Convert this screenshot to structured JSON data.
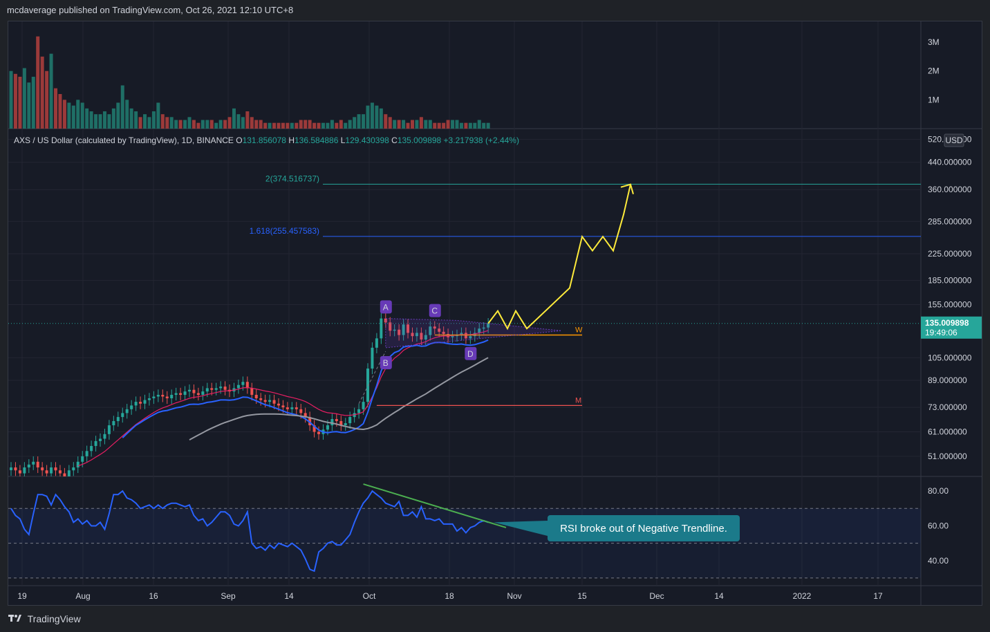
{
  "header": {
    "published": "mcdaverage published on TradingView.com, Oct 26, 2021 12:10 UTC+8"
  },
  "footer": {
    "brand": "TradingView"
  },
  "legend": {
    "symbol": "AXS / US Dollar (calculated by TradingView), 1D, BINANCE",
    "o_label": "O",
    "o_value": "131.856078",
    "h_label": "H",
    "h_value": "136.584886",
    "l_label": "L",
    "l_value": "129.430398",
    "c_label": "C",
    "c_value": "135.009898",
    "change": "+3.217938 (+2.44%)"
  },
  "price_tag": {
    "price": "135.009898",
    "countdown": "19:49:06"
  },
  "currency": "USD",
  "colors": {
    "up": "#26a69a",
    "down": "#ef5350",
    "ema_fast": "#2962ff",
    "ema_slow": "#e91e63",
    "sma": "#9598a1",
    "projection": "#ffeb3b",
    "rsi": "#2962ff",
    "trendline": "#4caf50",
    "fib_2": "#26a69a",
    "fib_1618": "#2962ff",
    "label_purple": "#673ab7"
  },
  "fib_levels": [
    {
      "label": "2(374.516737)",
      "price": 374.516737
    },
    {
      "label": "1.618(255.457583)",
      "price": 255.457583
    }
  ],
  "pattern_points": [
    "A",
    "B",
    "C",
    "D"
  ],
  "level_labels": {
    "w": "W",
    "m": "M"
  },
  "annotation": {
    "text": "RSI broke out of Negative Trendline."
  },
  "chart_data": {
    "type": "candlestick",
    "symbol": "AXSUSD",
    "timeframe": "1D",
    "price_axis": {
      "scale": "log",
      "ticks": [
        "520.000000",
        "440.000000",
        "360.000000",
        "285.000000",
        "225.000000",
        "185.000000",
        "155.000000",
        "105.000000",
        "89.000000",
        "73.000000",
        "61.000000",
        "51.000000"
      ]
    },
    "time_axis": {
      "ticks": [
        "19",
        "Aug",
        "16",
        "Sep",
        "14",
        "Oct",
        "18",
        "Nov",
        "15",
        "Dec",
        "14",
        "2022",
        "17"
      ]
    },
    "volume_axis": {
      "ticks": [
        "3M",
        "2M",
        "1M"
      ]
    },
    "rsi_axis": {
      "ticks": [
        "80.00",
        "60.00",
        "40.00"
      ],
      "band": [
        50,
        70
      ]
    },
    "close_series": [
      47,
      46,
      45,
      47,
      48,
      49,
      47,
      46,
      45,
      47,
      46,
      45,
      44,
      46,
      47,
      49,
      51,
      53,
      55,
      57,
      58,
      60,
      64,
      66,
      68,
      70,
      72,
      74,
      76,
      75,
      77,
      78,
      79,
      80,
      79,
      78,
      80,
      81,
      80,
      82,
      83,
      81,
      80,
      82,
      84,
      83,
      84,
      85,
      83,
      82,
      84,
      86,
      88,
      84,
      80,
      78,
      77,
      76,
      77,
      75,
      74,
      73,
      72,
      73,
      72,
      70,
      68,
      64,
      61,
      60,
      62,
      64,
      67,
      66,
      64,
      65,
      68,
      70,
      72,
      76,
      97,
      113,
      121,
      140,
      136,
      128,
      129,
      124,
      134,
      126,
      123,
      126,
      120,
      124,
      132,
      130,
      127,
      125,
      122,
      123,
      124,
      126,
      121,
      123,
      126,
      130,
      131,
      135
    ],
    "volume_series": [
      2.0,
      1.9,
      1.8,
      2.1,
      1.6,
      1.8,
      3.2,
      2.5,
      2.0,
      2.6,
      1.4,
      1.2,
      1.0,
      0.9,
      0.8,
      1.0,
      0.9,
      0.7,
      0.6,
      0.5,
      0.5,
      0.6,
      0.5,
      0.7,
      0.9,
      1.5,
      1.0,
      0.7,
      0.6,
      0.4,
      0.5,
      0.4,
      0.6,
      0.9,
      0.5,
      0.4,
      0.4,
      0.3,
      0.3,
      0.3,
      0.4,
      0.3,
      0.2,
      0.3,
      0.3,
      0.3,
      0.2,
      0.3,
      0.3,
      0.4,
      0.7,
      0.5,
      0.4,
      0.6,
      0.4,
      0.3,
      0.3,
      0.2,
      0.2,
      0.2,
      0.2,
      0.2,
      0.2,
      0.2,
      0.2,
      0.3,
      0.3,
      0.3,
      0.2,
      0.2,
      0.2,
      0.2,
      0.3,
      0.2,
      0.3,
      0.2,
      0.3,
      0.4,
      0.5,
      0.5,
      0.8,
      0.9,
      0.8,
      0.7,
      0.5,
      0.4,
      0.3,
      0.3,
      0.3,
      0.2,
      0.3,
      0.3,
      0.4,
      0.3,
      0.3,
      0.2,
      0.2,
      0.2,
      0.3,
      0.3,
      0.3,
      0.2,
      0.2,
      0.2,
      0.2,
      0.3,
      0.2,
      0.2
    ],
    "rsi_series": [
      70,
      66,
      64,
      58,
      55,
      67,
      78,
      78,
      77,
      72,
      78,
      75,
      71,
      68,
      62,
      64,
      61,
      63,
      60,
      60,
      62,
      58,
      67,
      78,
      78,
      80,
      76,
      75,
      73,
      70,
      71,
      72,
      70,
      72,
      70,
      72,
      73,
      73,
      72,
      71,
      72,
      66,
      63,
      64,
      60,
      62,
      65,
      68,
      68,
      66,
      61,
      60,
      63,
      68,
      50,
      47,
      48,
      46,
      49,
      47,
      50,
      49,
      48,
      50,
      48,
      46,
      41,
      35,
      34,
      45,
      47,
      50,
      51,
      49,
      49,
      52,
      55,
      62,
      68,
      73,
      76,
      80,
      78,
      76,
      73,
      72,
      71,
      74,
      66,
      66,
      68,
      65,
      71,
      64,
      64,
      63,
      64,
      61,
      61,
      61,
      57,
      59,
      56,
      59,
      60,
      62,
      63,
      62
    ],
    "projection_path_prices": [
      135,
      148,
      130,
      148,
      130,
      175,
      255,
      230,
      255,
      230,
      300,
      374
    ],
    "horizontal_levels": {
      "W": 124,
      "M": 74
    }
  }
}
